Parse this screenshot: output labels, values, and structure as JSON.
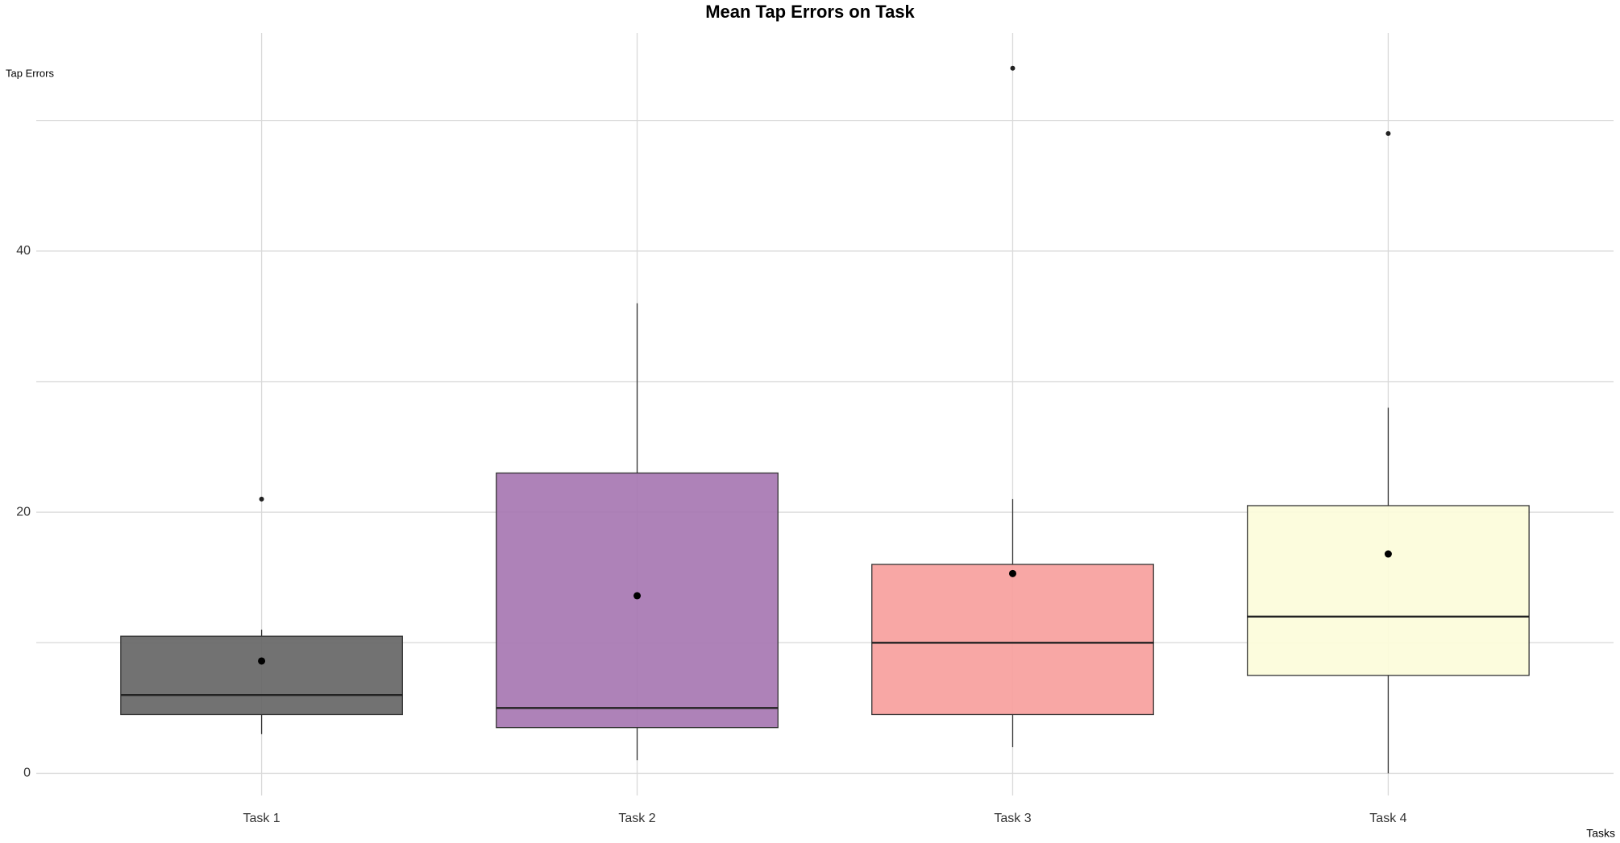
{
  "chart_data": {
    "type": "box",
    "title": "Mean Tap Errors on Task",
    "x_label": "Tasks",
    "y_label": "Tap Errors",
    "categories": [
      "Task 1",
      "Task 2",
      "Task 3",
      "Task 4"
    ],
    "boxes": [
      {
        "min": 3,
        "q1": 4.5,
        "median": 6,
        "q3": 10.5,
        "max": 11,
        "mean": 8.6,
        "outliers": [
          21
        ],
        "color": "#666666"
      },
      {
        "min": 1,
        "q1": 3.5,
        "median": 5,
        "q3": 23,
        "max": 36,
        "mean": 13.6,
        "outliers": [],
        "color": "#a777b2"
      },
      {
        "min": 2,
        "q1": 4.5,
        "median": 10,
        "q3": 16,
        "max": 21,
        "mean": 15.3,
        "outliers": [
          54
        ],
        "color": "#f7a09d"
      },
      {
        "min": 0,
        "q1": 7.5,
        "median": 12,
        "q3": 20.5,
        "max": 28,
        "mean": 16.8,
        "outliers": [
          49
        ],
        "color": "#fcfcda"
      }
    ],
    "ylim": [
      -1.7,
      56.7
    ],
    "yticks": [
      0,
      20,
      40
    ],
    "minor_yticks": [
      10,
      30,
      50
    ],
    "grid": true
  }
}
